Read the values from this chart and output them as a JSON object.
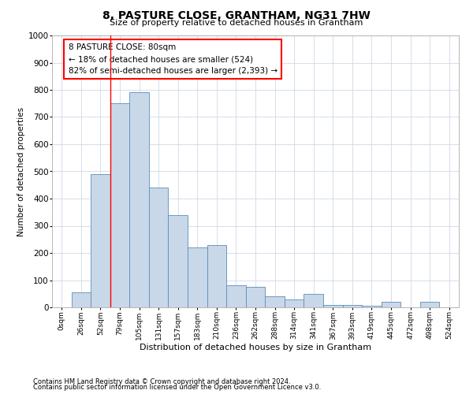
{
  "title1": "8, PASTURE CLOSE, GRANTHAM, NG31 7HW",
  "title2": "Size of property relative to detached houses in Grantham",
  "xlabel": "Distribution of detached houses by size in Grantham",
  "ylabel": "Number of detached properties",
  "bin_labels": [
    "0sqm",
    "26sqm",
    "52sqm",
    "79sqm",
    "105sqm",
    "131sqm",
    "157sqm",
    "183sqm",
    "210sqm",
    "236sqm",
    "262sqm",
    "288sqm",
    "314sqm",
    "341sqm",
    "367sqm",
    "393sqm",
    "419sqm",
    "445sqm",
    "472sqm",
    "498sqm",
    "524sqm"
  ],
  "bar_heights": [
    0,
    55,
    490,
    750,
    790,
    440,
    340,
    220,
    230,
    80,
    75,
    40,
    30,
    50,
    10,
    10,
    5,
    20,
    0,
    20,
    0
  ],
  "bar_color": "#c8d8e8",
  "bar_edge_color": "#5b8db8",
  "grid_color": "#d0d8e8",
  "annotation_line1": "8 PASTURE CLOSE: 80sqm",
  "annotation_line2": "← 18% of detached houses are smaller (524)",
  "annotation_line3": "82% of semi-detached houses are larger (2,393) →",
  "vline_x": 3,
  "ylim": [
    0,
    1000
  ],
  "yticks": [
    0,
    100,
    200,
    300,
    400,
    500,
    600,
    700,
    800,
    900,
    1000
  ],
  "footnote1": "Contains HM Land Registry data © Crown copyright and database right 2024.",
  "footnote2": "Contains public sector information licensed under the Open Government Licence v3.0."
}
